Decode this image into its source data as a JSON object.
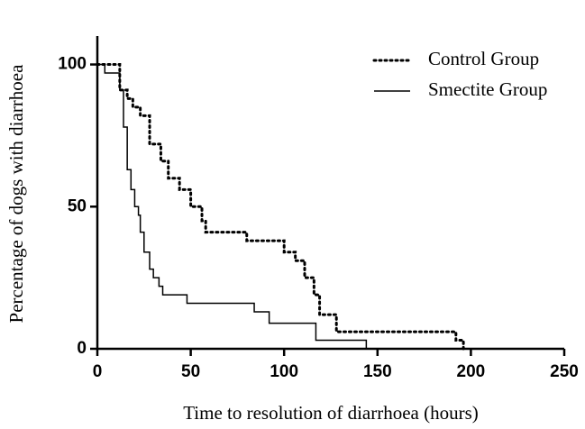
{
  "chart_data": {
    "type": "step",
    "x_label": "Time to resolution of diarrhoea (hours)",
    "y_label": "Percentage of dogs with diarrhoea",
    "xlim": [
      0,
      250
    ],
    "xticks": [
      0,
      50,
      100,
      150,
      200,
      250
    ],
    "ylim": [
      0,
      110
    ],
    "yticks": [
      0,
      50,
      100
    ],
    "legend": "top-right",
    "series": [
      {
        "name": "Control Group",
        "color": "#000000",
        "dash": "dotted",
        "x": [
          0,
          12,
          16,
          19,
          23,
          28,
          34,
          38,
          44,
          50,
          56,
          58,
          80,
          100,
          106,
          111,
          116,
          119,
          128,
          192,
          196
        ],
        "values": [
          100,
          91,
          88,
          85,
          82,
          72,
          66,
          60,
          56,
          50,
          45,
          41,
          38,
          34,
          31,
          25,
          19,
          12,
          6,
          3,
          0
        ]
      },
      {
        "name": "Smectite Group",
        "color": "#000000",
        "dash": "solid",
        "x": [
          0,
          4,
          12,
          14,
          16,
          18,
          20,
          22,
          23,
          25,
          28,
          30,
          33,
          35,
          48,
          84,
          92,
          117,
          144
        ],
        "values": [
          100,
          97,
          91,
          78,
          63,
          56,
          50,
          47,
          41,
          34,
          28,
          25,
          22,
          19,
          16,
          13,
          9,
          3,
          0
        ]
      }
    ]
  }
}
